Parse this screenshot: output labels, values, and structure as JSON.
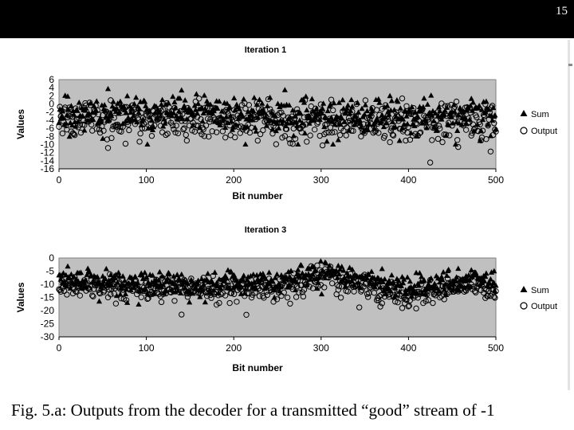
{
  "slide_number": "15",
  "caption": "Fig. 5.a: Outputs from the decoder for a transmitted “good” stream of -1",
  "colors": {
    "plot_bg": "#c0c0c0",
    "marker": "#000000",
    "top_bar": "#000000"
  },
  "chart_data": [
    {
      "type": "scatter",
      "title": "Iteration 1",
      "xlabel": "Bit number",
      "ylabel": "Values",
      "xlim": [
        0,
        500
      ],
      "ylim": [
        -16,
        6
      ],
      "xticks": [
        "0",
        "100",
        "200",
        "300",
        "400",
        "500"
      ],
      "yticks": [
        "6",
        "4",
        "2",
        "0",
        "-2",
        "-4",
        "-6",
        "-8",
        "-10",
        "-12",
        "-14",
        "-16"
      ],
      "grid": false,
      "legend_position": "right",
      "series": [
        {
          "name": "Sum",
          "marker": "triangle",
          "count": 500,
          "trend": [
            [
              0,
              -2
            ],
            [
              500,
              -3
            ]
          ],
          "spread": [
            -10,
            4
          ]
        },
        {
          "name": "Output",
          "marker": "circle",
          "count": 500,
          "trend": [
            [
              0,
              -4
            ],
            [
              500,
              -4.5
            ]
          ],
          "spread": [
            -14.5,
            3
          ]
        }
      ]
    },
    {
      "type": "scatter",
      "title": "Iteration 3",
      "xlabel": "Bit number",
      "ylabel": "Values",
      "xlim": [
        0,
        500
      ],
      "ylim": [
        -30,
        0
      ],
      "xticks": [
        "0",
        "100",
        "200",
        "300",
        "400",
        "500"
      ],
      "yticks": [
        "0",
        "-5",
        "-10",
        "-15",
        "-20",
        "-25",
        "-30"
      ],
      "grid": false,
      "legend_position": "right",
      "series": [
        {
          "name": "Sum",
          "marker": "triangle",
          "count": 500,
          "trend": [
            [
              0,
              -8
            ],
            [
              150,
              -10
            ],
            [
              260,
              -8
            ],
            [
              300,
              -5
            ],
            [
              400,
              -11
            ],
            [
              470,
              -8
            ],
            [
              500,
              -10
            ]
          ],
          "spread": [
            -22,
            0
          ]
        },
        {
          "name": "Output",
          "marker": "circle",
          "count": 500,
          "trend": [
            [
              0,
              -11
            ],
            [
              150,
              -12
            ],
            [
              260,
              -11
            ],
            [
              300,
              -7
            ],
            [
              400,
              -15
            ],
            [
              470,
              -10
            ],
            [
              500,
              -13
            ]
          ],
          "spread": [
            -25,
            -1
          ]
        }
      ]
    }
  ]
}
